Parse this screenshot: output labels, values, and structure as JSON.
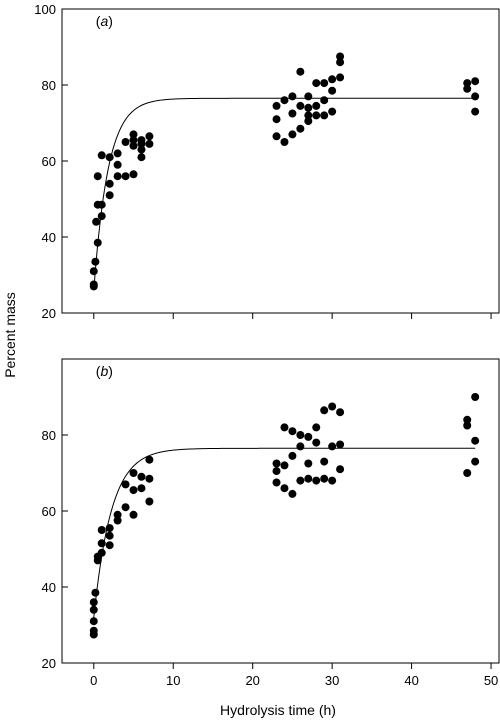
{
  "figure": {
    "ylabel": "Percent mass",
    "xlabel": "Hydrolysis time (h)"
  },
  "chart_data": [
    {
      "type": "scatter",
      "panel_label": "a",
      "panel_prefix": "(",
      "panel_suffix": ")",
      "xlim": [
        -4,
        51
      ],
      "ylim": [
        20,
        100
      ],
      "x_ticks": [
        0,
        10,
        20,
        30,
        40,
        50
      ],
      "y_ticks": [
        20,
        40,
        60,
        80,
        100
      ],
      "show_x_tick_labels": false,
      "points": [
        [
          0,
          27
        ],
        [
          0,
          27.5
        ],
        [
          0,
          31
        ],
        [
          0.2,
          33.5
        ],
        [
          0.5,
          38.5
        ],
        [
          0.3,
          44
        ],
        [
          0.5,
          48.5
        ],
        [
          0.5,
          56
        ],
        [
          1,
          45.5
        ],
        [
          1,
          48.5
        ],
        [
          1,
          61.5
        ],
        [
          2,
          51
        ],
        [
          2,
          54
        ],
        [
          2,
          61
        ],
        [
          3,
          56
        ],
        [
          3,
          59
        ],
        [
          3,
          62
        ],
        [
          4,
          56
        ],
        [
          4,
          65
        ],
        [
          5,
          56.5
        ],
        [
          5,
          64
        ],
        [
          5,
          65.5
        ],
        [
          5,
          67
        ],
        [
          6,
          61
        ],
        [
          6,
          63
        ],
        [
          6,
          64.5
        ],
        [
          6,
          65.5
        ],
        [
          7,
          64.5
        ],
        [
          7,
          66.5
        ],
        [
          23,
          66.5
        ],
        [
          23,
          71
        ],
        [
          23,
          74.5
        ],
        [
          24,
          65
        ],
        [
          24,
          76
        ],
        [
          25,
          67
        ],
        [
          25,
          72.5
        ],
        [
          25,
          77
        ],
        [
          26,
          68.5
        ],
        [
          26,
          74.5
        ],
        [
          26,
          83.5
        ],
        [
          27,
          70.5
        ],
        [
          27,
          72
        ],
        [
          27,
          74
        ],
        [
          27,
          77
        ],
        [
          28,
          72
        ],
        [
          28,
          74.5
        ],
        [
          28,
          80.5
        ],
        [
          29,
          72
        ],
        [
          29,
          76
        ],
        [
          29,
          80.5
        ],
        [
          30,
          73
        ],
        [
          30,
          78.5
        ],
        [
          30,
          81.5
        ],
        [
          31,
          82
        ],
        [
          31,
          86
        ],
        [
          31,
          87.5
        ],
        [
          47,
          79
        ],
        [
          47,
          80.5
        ],
        [
          48,
          73
        ],
        [
          48,
          77
        ],
        [
          48,
          81
        ]
      ],
      "curve": {
        "model": "exponential_rise",
        "a": 76.5,
        "b": 50.5,
        "k": 0.55,
        "x_start": 0,
        "x_end": 48
      }
    },
    {
      "type": "scatter",
      "panel_label": "b",
      "panel_prefix": "(",
      "panel_suffix": ")",
      "xlim": [
        -4,
        51
      ],
      "ylim": [
        20,
        100
      ],
      "x_ticks": [
        0,
        10,
        20,
        30,
        40,
        50
      ],
      "y_ticks": [
        20,
        40,
        60,
        80
      ],
      "show_x_tick_labels": true,
      "points": [
        [
          0,
          27.5
        ],
        [
          0,
          28.5
        ],
        [
          0,
          31
        ],
        [
          0,
          34
        ],
        [
          0,
          36
        ],
        [
          0.2,
          38.5
        ],
        [
          0.5,
          47
        ],
        [
          0.5,
          48
        ],
        [
          1,
          49
        ],
        [
          1,
          51.5
        ],
        [
          1,
          55
        ],
        [
          2,
          51
        ],
        [
          2,
          53.5
        ],
        [
          2,
          55.5
        ],
        [
          3,
          57.5
        ],
        [
          3,
          59
        ],
        [
          4,
          61
        ],
        [
          4,
          67
        ],
        [
          5,
          59
        ],
        [
          5,
          65.5
        ],
        [
          5,
          70
        ],
        [
          6,
          66
        ],
        [
          6,
          69
        ],
        [
          7,
          62.5
        ],
        [
          7,
          68.5
        ],
        [
          7,
          73.5
        ],
        [
          23,
          67.5
        ],
        [
          23,
          70.5
        ],
        [
          23,
          72.5
        ],
        [
          24,
          66
        ],
        [
          24,
          72
        ],
        [
          24,
          82
        ],
        [
          25,
          64.5
        ],
        [
          25,
          74.5
        ],
        [
          25,
          81
        ],
        [
          26,
          68
        ],
        [
          26,
          77
        ],
        [
          26,
          80
        ],
        [
          27,
          68.5
        ],
        [
          27,
          72.5
        ],
        [
          27,
          79.5
        ],
        [
          28,
          68
        ],
        [
          28,
          78
        ],
        [
          28,
          82
        ],
        [
          29,
          68.5
        ],
        [
          29,
          73
        ],
        [
          29,
          86.5
        ],
        [
          30,
          68
        ],
        [
          30,
          77
        ],
        [
          30,
          87.5
        ],
        [
          31,
          71
        ],
        [
          31,
          77.5
        ],
        [
          31,
          86
        ],
        [
          47,
          70
        ],
        [
          47,
          82.5
        ],
        [
          47,
          84
        ],
        [
          48,
          73
        ],
        [
          48,
          78.5
        ],
        [
          48,
          90
        ]
      ],
      "curve": {
        "model": "exponential_rise",
        "a": 76.5,
        "b": 44.5,
        "k": 0.45,
        "x_start": 0,
        "x_end": 48
      }
    }
  ]
}
